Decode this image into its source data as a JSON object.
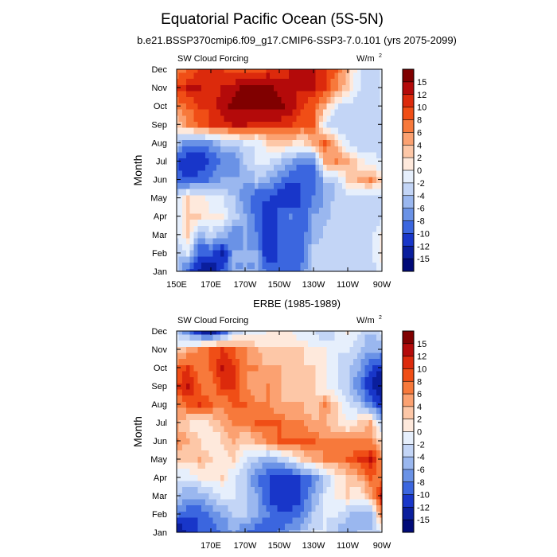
{
  "title": "Equatorial Pacific Ocean (5S-5N)",
  "colorbar": {
    "labels": [
      "15",
      "12",
      "10",
      "8",
      "6",
      "4",
      "2",
      "0",
      "-2",
      "-4",
      "-6",
      "-8",
      "-10",
      "-12",
      "-15"
    ],
    "colors": [
      "#800000",
      "#b40a0a",
      "#dc2a0c",
      "#f04e16",
      "#f7793b",
      "#fba171",
      "#fdc7a7",
      "#fee9dc",
      "#e6effc",
      "#c3d5f6",
      "#9ab7ef",
      "#6a92e6",
      "#3b66df",
      "#1836c9",
      "#0a1e9d",
      "#000a78"
    ]
  },
  "chart_data": [
    {
      "type": "heatmap",
      "title": "b.e21.BSSP370cmip6.f09_g17.CMIP6-SSP3-7.0.101 (yrs 2075-2099)",
      "variable": "SW Cloud Forcing",
      "units": "W/m",
      "units_sup": "2",
      "ylabel": "Month",
      "yticks": [
        "Jan",
        "Feb",
        "Mar",
        "Apr",
        "May",
        "Jun",
        "Jul",
        "Aug",
        "Sep",
        "Oct",
        "Nov",
        "Dec"
      ],
      "xticks": [
        "150E",
        "170E",
        "170W",
        "150W",
        "130W",
        "110W",
        "90W"
      ],
      "levels": [
        -15,
        -12,
        -10,
        -8,
        -6,
        -4,
        -2,
        0,
        2,
        4,
        6,
        8,
        10,
        12,
        15
      ],
      "z": [
        [
          -4,
          -10,
          -13,
          -15,
          -10,
          -6,
          -6,
          -6,
          -9,
          -10,
          -10,
          -7,
          -3,
          -3,
          -4,
          -3,
          -4,
          -3,
          -1
        ],
        [
          -4,
          -2,
          -10,
          -10,
          -13,
          -6,
          -6,
          -6,
          -12,
          -10,
          -10,
          -9,
          -3,
          -3,
          -4,
          -3,
          -4,
          -3,
          1
        ],
        [
          -2,
          2,
          -6,
          -3,
          -5,
          -8,
          -6,
          -8,
          -12,
          -10,
          -9,
          -9,
          -6,
          -3,
          -4,
          -3,
          -4,
          -3,
          1
        ],
        [
          -2,
          2,
          2,
          0,
          0,
          -3,
          -6,
          -9,
          -12,
          -9,
          -8,
          -10,
          -6,
          -5,
          -3,
          -3,
          -4,
          -4,
          -3
        ],
        [
          -2,
          2,
          1,
          -1,
          -2,
          -4,
          -7,
          -10,
          -10,
          -12,
          -12,
          -10,
          -8,
          -6,
          -3,
          -3,
          -4,
          -4,
          -3
        ],
        [
          -9,
          -10,
          -9,
          -8,
          -6,
          -6,
          -6,
          -4,
          -5,
          -8,
          -10,
          -10,
          -10,
          -4,
          -4,
          2,
          4,
          6,
          2
        ],
        [
          -10,
          -12,
          -12,
          -10,
          -8,
          -8,
          -4,
          -2,
          -2,
          -3,
          -6,
          -8,
          -8,
          4,
          7,
          4,
          1,
          -1,
          -2
        ],
        [
          -4,
          -8,
          -8,
          -7,
          -4,
          -4,
          -2,
          -2,
          2,
          2,
          2,
          1,
          4,
          8,
          3,
          -2,
          -4,
          -3,
          -4
        ],
        [
          2,
          6,
          8,
          10,
          10,
          12,
          12,
          10,
          10,
          10,
          10,
          8,
          8,
          -2,
          -4,
          -3,
          -4,
          -3,
          -4
        ],
        [
          6,
          8,
          10,
          10,
          14,
          16,
          16,
          16,
          16,
          16,
          14,
          10,
          8,
          4,
          -2,
          -3,
          -4,
          -3,
          -2
        ],
        [
          10,
          12,
          12,
          10,
          12,
          14,
          16,
          16,
          16,
          14,
          12,
          12,
          12,
          10,
          6,
          2,
          -2,
          -3,
          -2
        ],
        [
          6,
          8,
          10,
          10,
          10,
          8,
          8,
          8,
          10,
          10,
          12,
          12,
          12,
          10,
          8,
          4,
          -2,
          -3,
          -2
        ]
      ]
    },
    {
      "type": "heatmap",
      "title": "ERBE (1985-1989)",
      "variable": "SW Cloud Forcing",
      "units": "W/m",
      "units_sup": "2",
      "ylabel": "Month",
      "yticks": [
        "Jan",
        "Feb",
        "Mar",
        "Apr",
        "May",
        "Jun",
        "Jul",
        "Aug",
        "Sep",
        "Oct",
        "Nov",
        "Dec"
      ],
      "xticks": [
        "170E",
        "170W",
        "150W",
        "130W",
        "110W",
        "90W"
      ],
      "xtick_positions": [
        1,
        2,
        3,
        4,
        5,
        6
      ],
      "levels": [
        -15,
        -12,
        -10,
        -8,
        -6,
        -4,
        -2,
        0,
        2,
        4,
        6,
        8,
        10,
        12,
        15
      ],
      "z": [
        [
          -15,
          -12,
          -10,
          -10,
          -8,
          -6,
          -8,
          -10,
          -10,
          -8,
          -6,
          -4,
          -2,
          -2,
          -4,
          -6,
          -4,
          -4,
          -2
        ],
        [
          -8,
          -10,
          -10,
          -8,
          -6,
          -4,
          -4,
          -6,
          -8,
          -10,
          -10,
          -8,
          -4,
          -2,
          -2,
          -4,
          -6,
          -6,
          6
        ],
        [
          -4,
          -6,
          -6,
          -4,
          -2,
          -2,
          -4,
          -6,
          -10,
          -12,
          -12,
          -10,
          -6,
          -2,
          0,
          2,
          0,
          4,
          12
        ],
        [
          -2,
          -2,
          0,
          0,
          2,
          -2,
          -4,
          -8,
          -10,
          -12,
          -12,
          -10,
          -8,
          -4,
          0,
          2,
          4,
          8,
          6
        ],
        [
          2,
          2,
          4,
          2,
          0,
          2,
          -2,
          -4,
          -6,
          -4,
          -2,
          2,
          4,
          6,
          6,
          8,
          10,
          12,
          6
        ],
        [
          6,
          4,
          2,
          0,
          2,
          4,
          2,
          4,
          6,
          8,
          8,
          8,
          8,
          6,
          6,
          6,
          6,
          6,
          2
        ],
        [
          4,
          2,
          0,
          2,
          4,
          6,
          6,
          8,
          8,
          8,
          6,
          6,
          4,
          4,
          2,
          0,
          2,
          4,
          -4
        ],
        [
          6,
          8,
          10,
          8,
          6,
          8,
          8,
          6,
          6,
          4,
          4,
          4,
          2,
          6,
          2,
          -2,
          -4,
          -8,
          -12
        ],
        [
          10,
          12,
          8,
          6,
          10,
          10,
          6,
          4,
          6,
          4,
          2,
          2,
          2,
          0,
          -2,
          -4,
          -8,
          -12,
          -15
        ],
        [
          8,
          10,
          6,
          8,
          12,
          10,
          6,
          6,
          4,
          4,
          2,
          2,
          2,
          0,
          -2,
          -4,
          -6,
          -10,
          -12
        ],
        [
          2,
          4,
          6,
          8,
          10,
          8,
          6,
          4,
          2,
          2,
          2,
          2,
          0,
          0,
          -2,
          -2,
          -4,
          -6,
          -6
        ],
        [
          -4,
          -8,
          -12,
          -15,
          -10,
          -4,
          -2,
          -2,
          0,
          0,
          0,
          -2,
          -2,
          -4,
          -2,
          0,
          -2,
          -4,
          -2
        ]
      ]
    }
  ]
}
